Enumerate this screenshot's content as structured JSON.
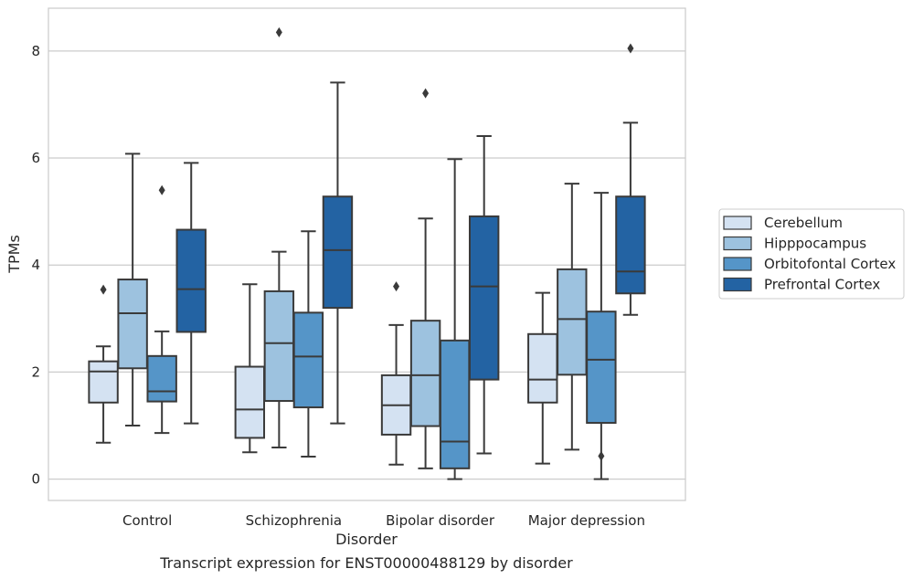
{
  "caption": "Transcript expression for ENST00000488129 by disorder",
  "chart_data": {
    "type": "box",
    "xlabel": "Disorder",
    "ylabel": "TPMs",
    "ylim": [
      -0.4,
      8.8
    ],
    "yticks": [
      0,
      2,
      4,
      6,
      8
    ],
    "grid": "horizontal",
    "legend_position": "right",
    "categories": [
      "Control",
      "Schizophrenia",
      "Bipolar disorder",
      "Major depression"
    ],
    "series": [
      {
        "name": "Cerebellum",
        "color": "#d4e2f2",
        "boxes": [
          {
            "whislo": 0.68,
            "q1": 1.43,
            "med": 2.01,
            "q3": 2.2,
            "whishi": 2.48,
            "fliers": [
              3.54
            ]
          },
          {
            "whislo": 0.5,
            "q1": 0.77,
            "med": 1.3,
            "q3": 2.1,
            "whishi": 3.64,
            "fliers": []
          },
          {
            "whislo": 0.27,
            "q1": 0.83,
            "med": 1.38,
            "q3": 1.94,
            "whishi": 2.88,
            "fliers": [
              3.6
            ]
          },
          {
            "whislo": 0.29,
            "q1": 1.43,
            "med": 1.86,
            "q3": 2.71,
            "whishi": 3.48,
            "fliers": []
          }
        ]
      },
      {
        "name": "Hipppocampus",
        "color": "#9dc2df",
        "boxes": [
          {
            "whislo": 1.0,
            "q1": 2.07,
            "med": 3.1,
            "q3": 3.73,
            "whishi": 6.08,
            "fliers": []
          },
          {
            "whislo": 0.59,
            "q1": 1.46,
            "med": 2.54,
            "q3": 3.51,
            "whishi": 4.25,
            "fliers": [
              8.35
            ]
          },
          {
            "whislo": 0.2,
            "q1": 0.99,
            "med": 1.94,
            "q3": 2.96,
            "whishi": 4.87,
            "fliers": [
              7.21
            ]
          },
          {
            "whislo": 0.55,
            "q1": 1.95,
            "med": 2.99,
            "q3": 3.92,
            "whishi": 5.52,
            "fliers": []
          }
        ]
      },
      {
        "name": "Orbitofontal Cortex",
        "color": "#5595c8",
        "boxes": [
          {
            "whislo": 0.86,
            "q1": 1.45,
            "med": 1.64,
            "q3": 2.3,
            "whishi": 2.76,
            "fliers": [
              5.4
            ]
          },
          {
            "whislo": 0.42,
            "q1": 1.34,
            "med": 2.29,
            "q3": 3.11,
            "whishi": 4.63,
            "fliers": []
          },
          {
            "whislo": 0.0,
            "q1": 0.2,
            "med": 0.7,
            "q3": 2.59,
            "whishi": 5.98,
            "fliers": []
          },
          {
            "whislo": 0.0,
            "q1": 1.05,
            "med": 2.23,
            "q3": 3.13,
            "whishi": 5.35,
            "fliers": [
              0.43
            ]
          }
        ]
      },
      {
        "name": "Prefrontal Cortex",
        "color": "#2363a3",
        "boxes": [
          {
            "whislo": 1.04,
            "q1": 2.75,
            "med": 3.55,
            "q3": 4.66,
            "whishi": 5.91,
            "fliers": []
          },
          {
            "whislo": 1.04,
            "q1": 3.2,
            "med": 4.28,
            "q3": 5.28,
            "whishi": 7.41,
            "fliers": []
          },
          {
            "whislo": 0.48,
            "q1": 1.86,
            "med": 3.6,
            "q3": 4.91,
            "whishi": 6.41,
            "fliers": []
          },
          {
            "whislo": 3.07,
            "q1": 3.47,
            "med": 3.88,
            "q3": 5.28,
            "whishi": 6.66,
            "fliers": [
              8.05
            ]
          }
        ]
      }
    ]
  }
}
